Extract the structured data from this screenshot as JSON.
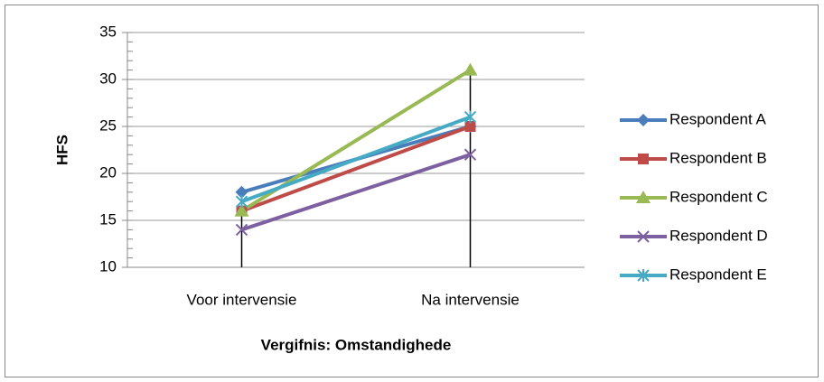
{
  "chart_data": {
    "type": "line",
    "categories": [
      "Voor intervensie",
      "Na intervensie"
    ],
    "series": [
      {
        "name": "Respondent A",
        "color": "#4a7ebb",
        "marker": "diamond",
        "values": [
          18,
          25
        ]
      },
      {
        "name": "Respondent B",
        "color": "#be4b48",
        "marker": "square",
        "values": [
          16,
          25
        ]
      },
      {
        "name": "Respondent C",
        "color": "#98b954",
        "marker": "triangle",
        "values": [
          16,
          31
        ]
      },
      {
        "name": "Respondent D",
        "color": "#7d60a0",
        "marker": "x",
        "values": [
          14,
          22
        ]
      },
      {
        "name": "Respondent E",
        "color": "#46aac5",
        "marker": "star",
        "values": [
          17,
          26
        ]
      }
    ],
    "ylabel": "HFS",
    "xlabel": "Vergifnis: Omstandighede",
    "ylim": [
      10,
      35
    ],
    "yticks": [
      10,
      15,
      20,
      25,
      30,
      35
    ],
    "yminor": 1,
    "grid": true,
    "drop_lines": true,
    "legend": "right"
  }
}
